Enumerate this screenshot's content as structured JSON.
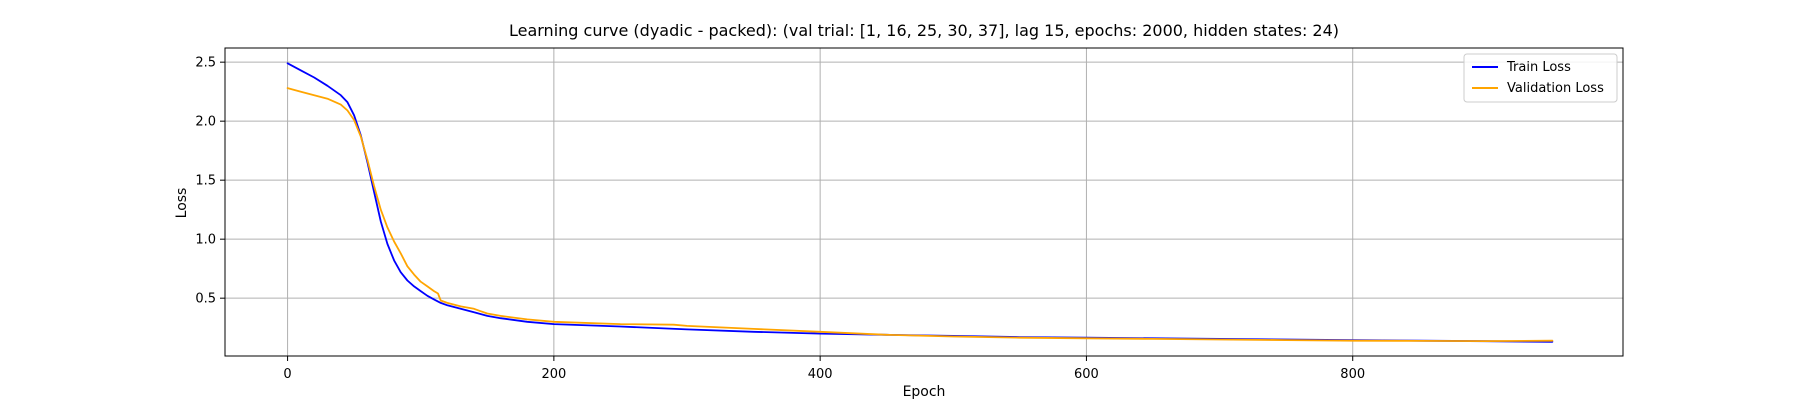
{
  "chart_data": {
    "type": "line",
    "title": "Learning curve (dyadic - packed): (val trial: [1, 16, 25, 30, 37], lag 15, epochs: 2000, hidden states: 24)",
    "xlabel": "Epoch",
    "ylabel": "Loss",
    "xlim": [
      -47,
      1003
    ],
    "ylim": [
      0.01,
      2.62
    ],
    "xticks": [
      0,
      200,
      400,
      600,
      800
    ],
    "xtick_labels": [
      "0",
      "200",
      "400",
      "600",
      "800"
    ],
    "yticks": [
      0.5,
      1.0,
      1.5,
      2.0,
      2.5
    ],
    "ytick_labels": [
      "0.5",
      "1.0",
      "1.5",
      "2.0",
      "2.5"
    ],
    "grid": true,
    "legend_position": "upper right",
    "series": [
      {
        "name": "Train Loss",
        "color": "#0000ff",
        "points": [
          [
            0,
            2.49
          ],
          [
            10,
            2.43
          ],
          [
            20,
            2.37
          ],
          [
            30,
            2.3
          ],
          [
            40,
            2.22
          ],
          [
            45,
            2.16
          ],
          [
            50,
            2.05
          ],
          [
            55,
            1.88
          ],
          [
            60,
            1.65
          ],
          [
            65,
            1.4
          ],
          [
            70,
            1.15
          ],
          [
            75,
            0.96
          ],
          [
            80,
            0.82
          ],
          [
            85,
            0.72
          ],
          [
            90,
            0.65
          ],
          [
            95,
            0.6
          ],
          [
            100,
            0.56
          ],
          [
            105,
            0.52
          ],
          [
            110,
            0.49
          ],
          [
            115,
            0.46
          ],
          [
            120,
            0.44
          ],
          [
            130,
            0.41
          ],
          [
            140,
            0.38
          ],
          [
            150,
            0.35
          ],
          [
            160,
            0.33
          ],
          [
            180,
            0.3
          ],
          [
            200,
            0.28
          ],
          [
            250,
            0.26
          ],
          [
            300,
            0.235
          ],
          [
            350,
            0.215
          ],
          [
            400,
            0.2
          ],
          [
            450,
            0.19
          ],
          [
            500,
            0.18
          ],
          [
            550,
            0.17
          ],
          [
            600,
            0.165
          ],
          [
            650,
            0.16
          ],
          [
            700,
            0.155
          ],
          [
            750,
            0.15
          ],
          [
            800,
            0.145
          ],
          [
            850,
            0.14
          ],
          [
            900,
            0.135
          ],
          [
            950,
            0.13
          ]
        ]
      },
      {
        "name": "Validation Loss",
        "color": "#ffa500",
        "points": [
          [
            0,
            2.28
          ],
          [
            10,
            2.25
          ],
          [
            20,
            2.22
          ],
          [
            30,
            2.19
          ],
          [
            40,
            2.14
          ],
          [
            45,
            2.09
          ],
          [
            50,
            2.01
          ],
          [
            55,
            1.87
          ],
          [
            60,
            1.67
          ],
          [
            65,
            1.45
          ],
          [
            70,
            1.25
          ],
          [
            75,
            1.1
          ],
          [
            80,
            0.98
          ],
          [
            85,
            0.88
          ],
          [
            90,
            0.77
          ],
          [
            95,
            0.7
          ],
          [
            100,
            0.64
          ],
          [
            105,
            0.6
          ],
          [
            110,
            0.56
          ],
          [
            113,
            0.54
          ],
          [
            115,
            0.48
          ],
          [
            120,
            0.46
          ],
          [
            130,
            0.43
          ],
          [
            140,
            0.41
          ],
          [
            145,
            0.39
          ],
          [
            150,
            0.37
          ],
          [
            160,
            0.35
          ],
          [
            180,
            0.32
          ],
          [
            200,
            0.3
          ],
          [
            250,
            0.28
          ],
          [
            290,
            0.275
          ],
          [
            300,
            0.265
          ],
          [
            350,
            0.24
          ],
          [
            400,
            0.215
          ],
          [
            450,
            0.19
          ],
          [
            500,
            0.175
          ],
          [
            550,
            0.165
          ],
          [
            600,
            0.16
          ],
          [
            650,
            0.155
          ],
          [
            700,
            0.15
          ],
          [
            750,
            0.145
          ],
          [
            800,
            0.14
          ],
          [
            850,
            0.138
          ],
          [
            900,
            0.136
          ],
          [
            950,
            0.14
          ]
        ]
      }
    ]
  }
}
